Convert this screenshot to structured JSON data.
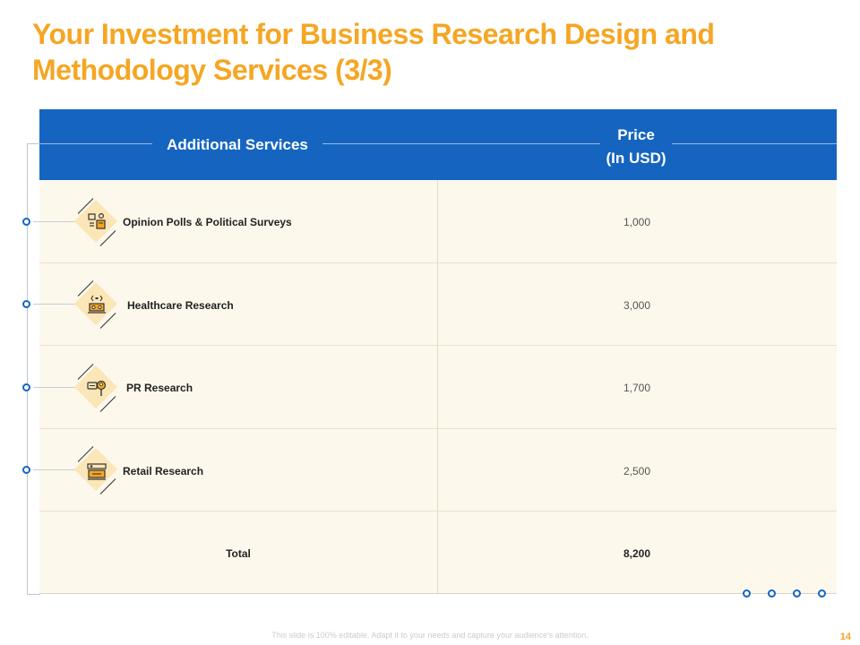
{
  "title": "Your Investment for Business Research Design and Methodology Services (3/3)",
  "header": {
    "services_label": "Additional Services",
    "price_line1": "Price",
    "price_line2": "(In USD)"
  },
  "rows": [
    {
      "label": "Opinion Polls & Political Surveys",
      "price": "1,000",
      "icon": "opinion-poll-icon"
    },
    {
      "label": "Healthcare  Research",
      "price": "3,000",
      "icon": "healthcare-icon"
    },
    {
      "label": "PR Research",
      "price": "1,700",
      "icon": "pr-research-icon"
    },
    {
      "label": "Retail  Research",
      "price": "2,500",
      "icon": "retail-icon"
    }
  ],
  "total": {
    "label": "Total",
    "price": "8,200"
  },
  "footer": {
    "note": "This slide is 100% editable. Adapt it to your needs and capture your audience's attention.",
    "page": "14"
  },
  "colors": {
    "accent": "#F5A623",
    "header": "#1565C0",
    "row_bg": "#FDF8EC"
  }
}
